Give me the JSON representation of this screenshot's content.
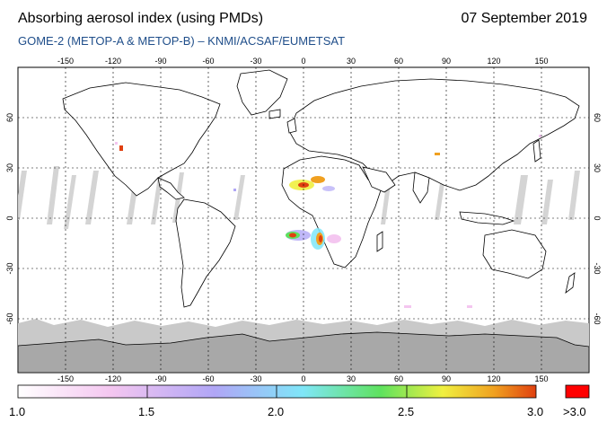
{
  "title": "Absorbing aerosol index (using PMDs)",
  "date": "07 September 2019",
  "subtitle": "GOME-2 (METOP-A & METOP-B)  –  KNMI/ACSAF/EUMETSAT",
  "lon_ticks": [
    "-150",
    "-120",
    "-90",
    "-60",
    "-30",
    "0",
    "30",
    "60",
    "90",
    "120",
    "150"
  ],
  "lat_ticks_left": [
    "60",
    "30",
    "0",
    "-30",
    "-60"
  ],
  "lat_ticks_right": [
    "60",
    "30",
    "0",
    "-30",
    "-60"
  ],
  "colorbar": {
    "ticks": [
      "1.0",
      "1.5",
      "2.0",
      "2.5",
      "3.0"
    ],
    "overflow_label": ">3.0",
    "colors": [
      "#ffffff",
      "#f4c6f0",
      "#b0a6f6",
      "#7fe6f8",
      "#5ee25e",
      "#f0f040",
      "#f0a020",
      "#e04010"
    ],
    "overflow_color": "#ff0000"
  },
  "colors": {
    "land_outline": "#000000",
    "ice": "#a8a8a8",
    "nodata_stripes": "#cfcfcf",
    "subtitle": "#1f4e8a"
  }
}
